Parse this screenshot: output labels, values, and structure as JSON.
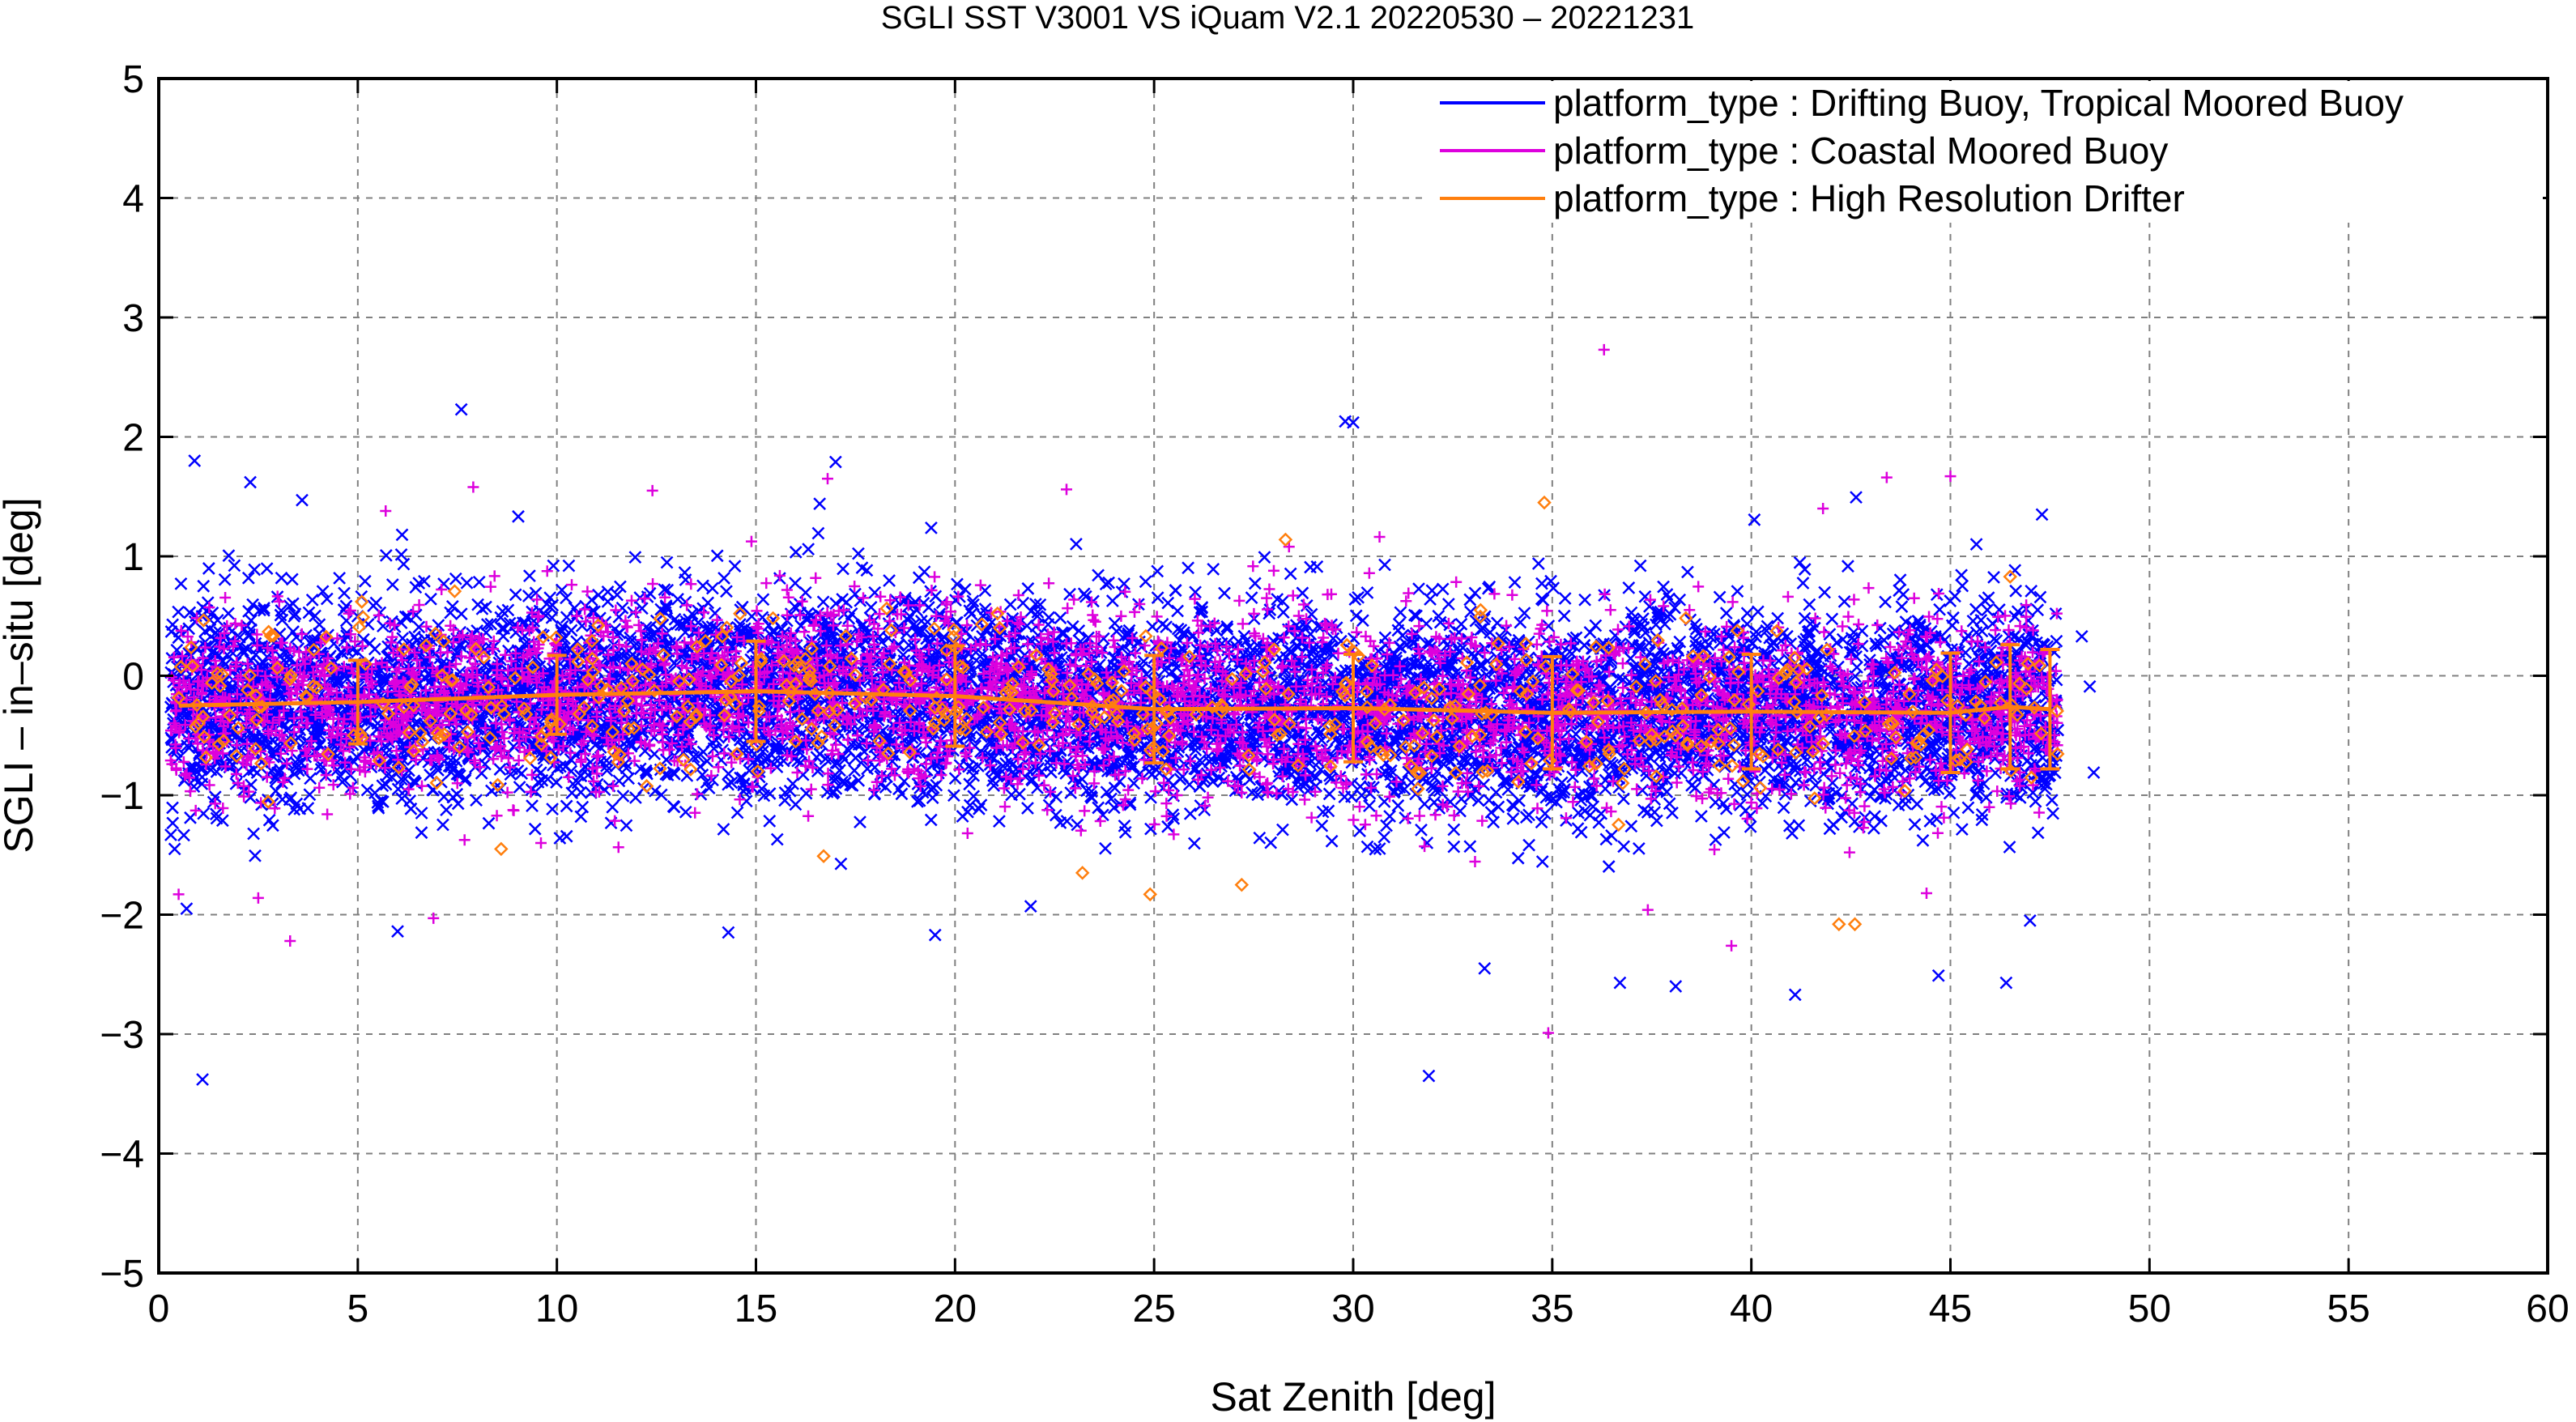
{
  "chart_data": {
    "type": "scatter",
    "title": "SGLI SST V3001 VS iQuam V2.1 20220530 – 20221231",
    "xlabel": "Sat Zenith [deg]",
    "ylabel": "SGLI – in–situ [deg]",
    "xlim": [
      0,
      60
    ],
    "ylim": [
      -5,
      5
    ],
    "xticks": [
      "0",
      "5",
      "10",
      "15",
      "20",
      "25",
      "30",
      "35",
      "40",
      "45",
      "50",
      "55",
      "60"
    ],
    "yticks": [
      "−5",
      "−4",
      "−3",
      "−2",
      "−1",
      "0",
      "1",
      "2",
      "3",
      "4",
      "5"
    ],
    "grid": true,
    "legend_position": "top-right",
    "colors": {
      "drifting": "#0000ff",
      "coastal": "#dd00dd",
      "hr_drifter": "#ff7f0e"
    },
    "series": [
      {
        "name": "platform_type : Drifting Buoy, Tropical Moored Buoy",
        "marker": "x",
        "color": "#0000ff",
        "points": [
          [
            0.9,
            1.8
          ],
          [
            7.6,
            2.23
          ],
          [
            2.3,
            1.62
          ],
          [
            3.6,
            1.47
          ],
          [
            0.4,
            -1.45
          ],
          [
            1.1,
            -3.38
          ],
          [
            0.7,
            -1.95
          ],
          [
            29.8,
            2.13
          ],
          [
            30.0,
            2.12
          ],
          [
            17.0,
            1.79
          ],
          [
            16.6,
            1.44
          ],
          [
            31.9,
            -3.35
          ],
          [
            41.1,
            -2.67
          ],
          [
            44.7,
            -2.51
          ],
          [
            46.4,
            -2.57
          ],
          [
            36.7,
            -2.57
          ],
          [
            33.3,
            -2.45
          ],
          [
            19.5,
            -2.17
          ],
          [
            6.0,
            -2.14
          ],
          [
            38.1,
            -2.6
          ],
          [
            47.3,
            1.35
          ],
          [
            48.3,
            0.33
          ],
          [
            48.5,
            -0.09
          ],
          [
            48.6,
            -0.81
          ],
          [
            21.9,
            -1.93
          ],
          [
            47.0,
            -2.05
          ]
        ]
      },
      {
        "name": "platform_type : Coastal Moored Buoy",
        "marker": "+",
        "color": "#dd00dd",
        "points": [
          [
            36.3,
            2.73
          ],
          [
            7.9,
            1.58
          ],
          [
            12.4,
            1.55
          ],
          [
            16.8,
            1.65
          ],
          [
            22.8,
            1.56
          ],
          [
            43.4,
            1.66
          ],
          [
            45.0,
            1.67
          ],
          [
            3.3,
            -2.22
          ],
          [
            34.9,
            -2.99
          ],
          [
            2.5,
            -1.86
          ],
          [
            6.9,
            -2.03
          ],
          [
            0.5,
            -1.83
          ],
          [
            39.5,
            -2.26
          ],
          [
            37.4,
            -1.96
          ],
          [
            44.4,
            -1.82
          ],
          [
            9.6,
            -1.4
          ],
          [
            5.7,
            1.38
          ],
          [
            41.8,
            1.4
          ]
        ]
      },
      {
        "name": "platform_type : High Resolution Drifter",
        "marker": "diamond",
        "color": "#ff7f0e",
        "points": [
          [
            34.8,
            1.45
          ],
          [
            28.3,
            1.14
          ],
          [
            16.7,
            -1.51
          ],
          [
            24.9,
            -1.83
          ],
          [
            42.2,
            -2.08
          ],
          [
            42.6,
            -2.08
          ],
          [
            23.2,
            -1.65
          ],
          [
            8.6,
            -1.45
          ],
          [
            46.5,
            0.83
          ],
          [
            5.1,
            0.62
          ],
          [
            18.4,
            0.38
          ],
          [
            33.2,
            0.55
          ],
          [
            14.6,
            0.52
          ],
          [
            11.4,
            -0.47
          ],
          [
            27.2,
            -1.75
          ]
        ]
      }
    ],
    "mean_curve": {
      "x": [
        0.5,
        5,
        10,
        15,
        20,
        25,
        30,
        35,
        40,
        45,
        46.5,
        47.5
      ],
      "y": [
        -0.25,
        -0.22,
        -0.16,
        -0.13,
        -0.17,
        -0.28,
        -0.27,
        -0.31,
        -0.3,
        -0.31,
        -0.26,
        -0.28
      ],
      "err": [
        0.45,
        0.35,
        0.33,
        0.42,
        0.42,
        0.45,
        0.45,
        0.47,
        0.48,
        0.5,
        0.52,
        0.5
      ]
    }
  }
}
